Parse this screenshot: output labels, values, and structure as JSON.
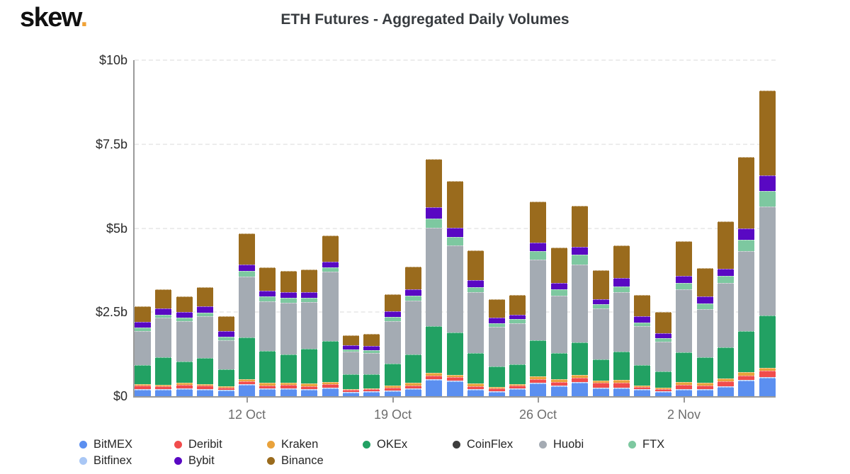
{
  "header": {
    "logo_text": "skew",
    "logo_dot": ".",
    "logo_dot_color": "#f0a236",
    "title": "ETH Futures - Aggregated Daily Volumes"
  },
  "y_axis": {
    "tick_labels": [
      "$10b",
      "$7.5b",
      "$5b",
      "$2.5b",
      "$0"
    ],
    "tick_values": [
      10,
      7.5,
      5,
      2.5,
      0
    ]
  },
  "x_axis": {
    "tick_labels": [
      "12 Oct",
      "19 Oct",
      "26 Oct",
      "2 Nov"
    ],
    "tick_bar_indices": [
      5,
      12,
      19,
      26
    ]
  },
  "legend": {
    "row1": [
      "BitMEX",
      "Deribit",
      "Kraken",
      "OKEx",
      "CoinFlex",
      "Huobi",
      "FTX"
    ],
    "row2": [
      "Bitfinex",
      "Bybit",
      "Binance"
    ]
  },
  "chart_data": {
    "type": "bar",
    "stacked": true,
    "title": "ETH Futures - Aggregated Daily Volumes",
    "unit": "USD billions",
    "ylim": [
      0,
      10
    ],
    "y_ticks": [
      0,
      2.5,
      5,
      7.5,
      10
    ],
    "grid": "horizontal-dashed",
    "legend_position": "bottom",
    "x": [
      "7 Oct",
      "8 Oct",
      "9 Oct",
      "10 Oct",
      "11 Oct",
      "12 Oct",
      "13 Oct",
      "14 Oct",
      "15 Oct",
      "16 Oct",
      "17 Oct",
      "18 Oct",
      "19 Oct",
      "20 Oct",
      "21 Oct",
      "22 Oct",
      "23 Oct",
      "24 Oct",
      "25 Oct",
      "26 Oct",
      "27 Oct",
      "28 Oct",
      "29 Oct",
      "30 Oct",
      "31 Oct",
      "1 Nov",
      "2 Nov",
      "3 Nov",
      "4 Nov",
      "5 Nov",
      "6 Nov"
    ],
    "stack_order": [
      "BitMEX",
      "Bitfinex",
      "Deribit",
      "Kraken",
      "OKEx",
      "CoinFlex",
      "Huobi",
      "FTX",
      "Bybit",
      "Binance"
    ],
    "series": [
      {
        "name": "BitMEX",
        "color": "#5b8ff0",
        "values": [
          0.2,
          0.18,
          0.21,
          0.19,
          0.16,
          0.33,
          0.21,
          0.21,
          0.18,
          0.23,
          0.11,
          0.12,
          0.15,
          0.21,
          0.48,
          0.44,
          0.19,
          0.12,
          0.21,
          0.38,
          0.3,
          0.4,
          0.24,
          0.23,
          0.19,
          0.13,
          0.19,
          0.18,
          0.28,
          0.46,
          0.55
        ]
      },
      {
        "name": "Bitfinex",
        "color": "#a9c7f5",
        "values": [
          0.01,
          0.01,
          0.01,
          0.01,
          0.01,
          0.01,
          0.01,
          0.01,
          0.01,
          0.01,
          0.01,
          0.01,
          0.01,
          0.01,
          0.01,
          0.01,
          0.01,
          0.01,
          0.01,
          0.01,
          0.01,
          0.01,
          0.01,
          0.01,
          0.01,
          0.01,
          0.01,
          0.01,
          0.01,
          0.01,
          0.01
        ]
      },
      {
        "name": "Deribit",
        "color": "#f14c4c",
        "values": [
          0.09,
          0.1,
          0.11,
          0.1,
          0.08,
          0.1,
          0.09,
          0.11,
          0.1,
          0.1,
          0.06,
          0.07,
          0.09,
          0.09,
          0.1,
          0.1,
          0.09,
          0.09,
          0.09,
          0.1,
          0.1,
          0.12,
          0.13,
          0.14,
          0.07,
          0.07,
          0.13,
          0.12,
          0.14,
          0.14,
          0.18
        ]
      },
      {
        "name": "Kraken",
        "color": "#e9a23b",
        "values": [
          0.04,
          0.04,
          0.05,
          0.04,
          0.04,
          0.06,
          0.07,
          0.07,
          0.07,
          0.07,
          0.03,
          0.03,
          0.05,
          0.07,
          0.1,
          0.07,
          0.07,
          0.04,
          0.04,
          0.09,
          0.09,
          0.09,
          0.08,
          0.09,
          0.04,
          0.04,
          0.08,
          0.07,
          0.09,
          0.1,
          0.09
        ]
      },
      {
        "name": "OKEx",
        "color": "#22a163",
        "values": [
          0.58,
          0.81,
          0.65,
          0.79,
          0.51,
          1.24,
          0.95,
          0.84,
          1.04,
          1.22,
          0.43,
          0.42,
          0.66,
          0.86,
          1.39,
          1.27,
          0.91,
          0.61,
          0.58,
          1.07,
          0.77,
          0.98,
          0.62,
          0.84,
          0.6,
          0.47,
          0.88,
          0.76,
          0.93,
          1.21,
          1.56
        ]
      },
      {
        "name": "CoinFlex",
        "color": "#3d3d3d",
        "values": [
          0,
          0,
          0,
          0,
          0,
          0,
          0,
          0,
          0,
          0,
          0,
          0,
          0,
          0,
          0,
          0,
          0,
          0,
          0,
          0,
          0,
          0,
          0,
          0,
          0,
          0,
          0,
          0,
          0,
          0,
          0
        ]
      },
      {
        "name": "Huobi",
        "color": "#a4abb3",
        "values": [
          1.0,
          1.18,
          1.19,
          1.23,
          0.86,
          1.81,
          1.49,
          1.52,
          1.39,
          2.07,
          0.67,
          0.63,
          1.26,
          1.59,
          2.93,
          2.59,
          1.81,
          1.18,
          1.23,
          2.41,
          1.7,
          2.31,
          1.51,
          1.77,
          1.16,
          0.89,
          1.87,
          1.44,
          1.91,
          2.39,
          3.24
        ]
      },
      {
        "name": "FTX",
        "color": "#7dc8a0",
        "values": [
          0.11,
          0.1,
          0.11,
          0.12,
          0.1,
          0.17,
          0.13,
          0.16,
          0.12,
          0.12,
          0.07,
          0.07,
          0.12,
          0.14,
          0.27,
          0.24,
          0.16,
          0.11,
          0.12,
          0.24,
          0.19,
          0.28,
          0.13,
          0.18,
          0.12,
          0.11,
          0.2,
          0.16,
          0.21,
          0.33,
          0.46
        ]
      },
      {
        "name": "Bybit",
        "color": "#5908c3",
        "values": [
          0.17,
          0.18,
          0.16,
          0.18,
          0.16,
          0.19,
          0.17,
          0.17,
          0.18,
          0.17,
          0.12,
          0.14,
          0.17,
          0.19,
          0.33,
          0.28,
          0.2,
          0.16,
          0.14,
          0.26,
          0.19,
          0.24,
          0.16,
          0.24,
          0.18,
          0.14,
          0.21,
          0.22,
          0.22,
          0.33,
          0.47
        ]
      },
      {
        "name": "Binance",
        "color": "#9a6b1d",
        "values": [
          0.46,
          0.57,
          0.47,
          0.57,
          0.44,
          0.93,
          0.7,
          0.63,
          0.66,
          0.78,
          0.3,
          0.35,
          0.52,
          0.68,
          1.44,
          1.4,
          0.88,
          0.56,
          0.58,
          1.23,
          1.06,
          1.22,
          0.85,
          0.98,
          0.64,
          0.63,
          1.03,
          0.85,
          1.4,
          2.14,
          2.53
        ]
      }
    ]
  }
}
